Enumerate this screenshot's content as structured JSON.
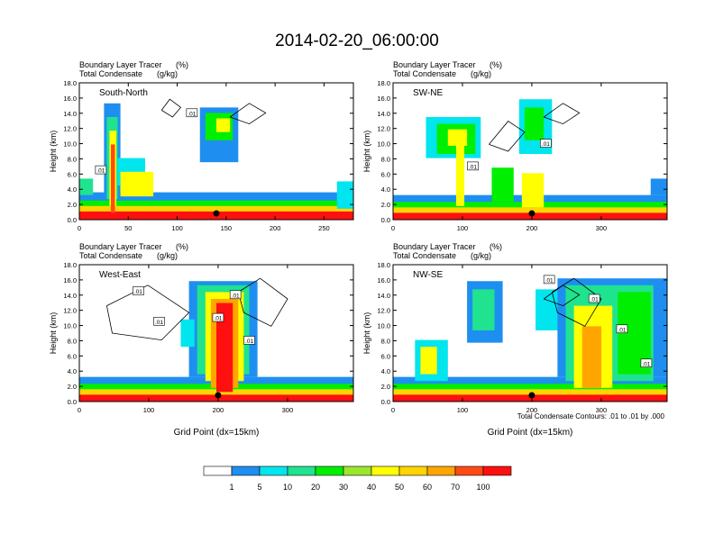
{
  "figure": {
    "title": "2014-02-20_06:00:00",
    "contour_note": "Total Condensate Contours: .01 to .01 by .000",
    "shared_xlabel": "Grid Point (dx=15km)"
  },
  "palette": {
    "colors": [
      "#ffffff",
      "#1e8ff0",
      "#00e5ee",
      "#1fe38f",
      "#00ee00",
      "#9be62e",
      "#ffff00",
      "#ffd400",
      "#ffa500",
      "#ff4a14",
      "#ff1010"
    ],
    "labels": [
      "1",
      "5",
      "10",
      "20",
      "30",
      "40",
      "50",
      "60",
      "70",
      "100"
    ],
    "contour_color": "#000000"
  },
  "chart_data": [
    {
      "type": "heatmap",
      "panel_label": "South-North",
      "subtitle_left": "Boundary Layer Tracer",
      "subtitle_unit": "(%)",
      "subtitle_left2": "Total Condensate",
      "subtitle_unit2": "(g/kg)",
      "ylabel": "Height (km)",
      "xlabel": "",
      "xlim": [
        0,
        280
      ],
      "ylim": [
        0,
        18
      ],
      "xticks": [
        0,
        50,
        100,
        150,
        200,
        250
      ],
      "yticks": [
        0.0,
        2.0,
        4.0,
        6.0,
        8.0,
        10.0,
        12.0,
        14.0,
        16.0,
        18.0
      ],
      "contour_labels": [
        {
          "text": ".01",
          "x": 22,
          "y": 6.5
        },
        {
          "text": ".01",
          "x": 115,
          "y": 14.0
        }
      ],
      "marker_x": 140
    },
    {
      "type": "heatmap",
      "panel_label": "SW-NE",
      "subtitle_left": "Boundary Layer Tracer",
      "subtitle_unit": "(%)",
      "subtitle_left2": "Total Condensate",
      "subtitle_unit2": "(g/kg)",
      "ylabel": "Height (km)",
      "xlabel": "",
      "xlim": [
        0,
        395
      ],
      "ylim": [
        0,
        18
      ],
      "xticks": [
        0,
        100,
        200,
        300
      ],
      "yticks": [
        0.0,
        2.0,
        4.0,
        6.0,
        8.0,
        10.0,
        12.0,
        14.0,
        16.0,
        18.0
      ],
      "contour_labels": [
        {
          "text": ".01",
          "x": 115,
          "y": 7.0
        },
        {
          "text": ".01",
          "x": 220,
          "y": 10.0
        }
      ],
      "marker_x": 200
    },
    {
      "type": "heatmap",
      "panel_label": "West-East",
      "subtitle_left": "Boundary Layer Tracer",
      "subtitle_unit": "(%)",
      "subtitle_left2": "Total Condensate",
      "subtitle_unit2": "(g/kg)",
      "ylabel": "Height (km)",
      "xlabel": "Grid Point (dx=15km)",
      "xlim": [
        0,
        395
      ],
      "ylim": [
        0,
        18
      ],
      "xticks": [
        0,
        100,
        200,
        300
      ],
      "yticks": [
        0.0,
        2.0,
        4.0,
        6.0,
        8.0,
        10.0,
        12.0,
        14.0,
        16.0,
        18.0
      ],
      "contour_labels": [
        {
          "text": ".01",
          "x": 85,
          "y": 14.5
        },
        {
          "text": ".01",
          "x": 115,
          "y": 10.5
        },
        {
          "text": ".01",
          "x": 200,
          "y": 11.0
        },
        {
          "text": ".01",
          "x": 225,
          "y": 14.0
        },
        {
          "text": ".01",
          "x": 245,
          "y": 8.0
        }
      ],
      "marker_x": 200
    },
    {
      "type": "heatmap",
      "panel_label": "NW-SE",
      "subtitle_left": "Boundary Layer Tracer",
      "subtitle_unit": "(%)",
      "subtitle_left2": "Total Condensate",
      "subtitle_unit2": "(g/kg)",
      "ylabel": "Height (km)",
      "xlabel": "Grid Point (dx=15km)",
      "xlim": [
        0,
        395
      ],
      "ylim": [
        0,
        18
      ],
      "xticks": [
        0,
        100,
        200,
        300
      ],
      "yticks": [
        0.0,
        2.0,
        4.0,
        6.0,
        8.0,
        10.0,
        12.0,
        14.0,
        16.0,
        18.0
      ],
      "contour_labels": [
        {
          "text": ".01",
          "x": 225,
          "y": 16.0
        },
        {
          "text": ".01",
          "x": 290,
          "y": 13.5
        },
        {
          "text": ".01",
          "x": 330,
          "y": 9.5
        },
        {
          "text": ".01",
          "x": 365,
          "y": 5.0
        }
      ],
      "marker_x": 200
    }
  ]
}
